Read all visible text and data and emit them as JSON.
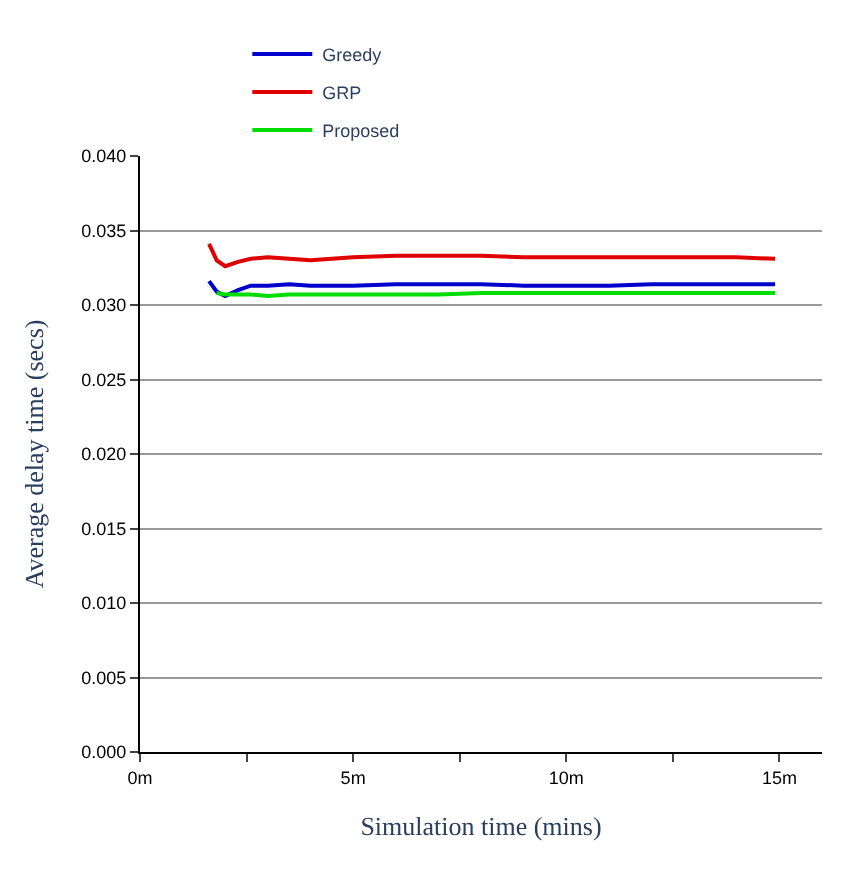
{
  "chart_data": {
    "type": "line",
    "xlabel": "Simulation time (mins)",
    "ylabel": "Average delay time (secs)",
    "x": [
      1.62,
      1.8,
      2.0,
      2.3,
      2.6,
      3.0,
      3.5,
      4.0,
      4.5,
      5,
      6,
      7,
      8,
      9,
      10,
      11,
      12,
      13,
      14,
      14.9
    ],
    "series": [
      {
        "name": "Greedy",
        "color": "#0000cc",
        "values": [
          0.0316,
          0.0309,
          0.0306,
          0.031,
          0.0313,
          0.0313,
          0.0314,
          0.0313,
          0.0313,
          0.0313,
          0.0314,
          0.0314,
          0.0314,
          0.0313,
          0.0313,
          0.0313,
          0.0314,
          0.0314,
          0.0314,
          0.0314
        ]
      },
      {
        "name": "GRP",
        "color": "#e00000",
        "values": [
          0.0341,
          0.033,
          0.0326,
          0.0329,
          0.0331,
          0.0332,
          0.0331,
          0.033,
          0.0331,
          0.0332,
          0.0333,
          0.0333,
          0.0333,
          0.0332,
          0.0332,
          0.0332,
          0.0332,
          0.0332,
          0.0332,
          0.0331
        ]
      },
      {
        "name": "Proposed",
        "color": "#00dd00",
        "values": [
          null,
          0.0308,
          0.0307,
          0.0307,
          0.0307,
          0.0306,
          0.0307,
          0.0307,
          0.0307,
          0.0307,
          0.0307,
          0.0307,
          0.0308,
          0.0308,
          0.0308,
          0.0308,
          0.0308,
          0.0308,
          0.0308,
          0.0308
        ]
      }
    ],
    "xlim": [
      0,
      16
    ],
    "xticks": [
      {
        "value": 0,
        "label": "0m"
      },
      {
        "value": 2.5,
        "label": null
      },
      {
        "value": 5,
        "label": "5m"
      },
      {
        "value": 7.5,
        "label": null
      },
      {
        "value": 10,
        "label": "10m"
      },
      {
        "value": 12.5,
        "label": null
      },
      {
        "value": 15,
        "label": "15m"
      }
    ],
    "ylim": [
      0,
      0.04
    ],
    "yticks": [
      {
        "value": 0,
        "label": "0.000"
      },
      {
        "value": 0.005,
        "label": "0.005"
      },
      {
        "value": 0.01,
        "label": "0.010"
      },
      {
        "value": 0.015,
        "label": "0.015"
      },
      {
        "value": 0.02,
        "label": "0.020"
      },
      {
        "value": 0.025,
        "label": "0.025"
      },
      {
        "value": 0.03,
        "label": "0.030"
      },
      {
        "value": 0.035,
        "label": "0.035"
      },
      {
        "value": 0.04,
        "label": "0.040"
      }
    ],
    "grid": "y",
    "legend": "top left",
    "marker": "none",
    "line_style": "solid"
  }
}
